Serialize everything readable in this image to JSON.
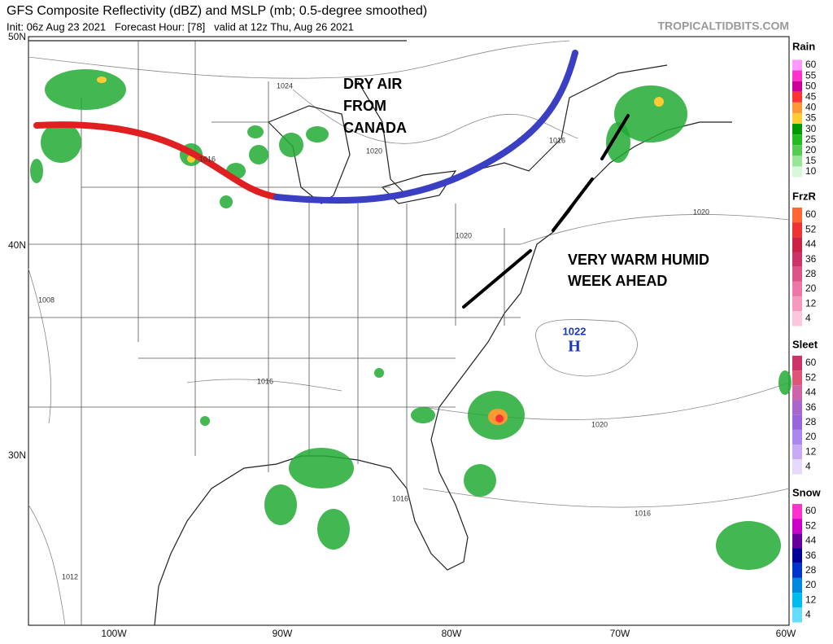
{
  "header": {
    "title": "GFS Composite Reflectivity (dBZ) and MSLP (mb; 0.5-degree smoothed)",
    "subtitle": "Init: 06z Aug 23 2021   Forecast Hour: [78]   valid at 12z Thu, Aug 26 2021",
    "credit": "TROPICALTIDBITS.COM"
  },
  "axes": {
    "lat_labels": [
      "50N",
      "40N",
      "30N"
    ],
    "lon_labels": [
      "100W",
      "90W",
      "80W",
      "70W",
      "60W"
    ]
  },
  "isobars": [
    "1024",
    "1020",
    "1016",
    "1020",
    "1016",
    "1020",
    "1008",
    "1016",
    "1016",
    "1020",
    "1016",
    "1012"
  ],
  "high": {
    "pressure": "1022",
    "letter": "H"
  },
  "annotations": [
    {
      "lines": [
        "DRY AIR",
        "FROM",
        "CANADA"
      ]
    },
    {
      "lines": [
        "VERY WARM HUMID",
        "WEEK AHEAD"
      ]
    }
  ],
  "legends": [
    {
      "name": "Rain",
      "labels": [
        "60",
        "55",
        "50",
        "45",
        "40",
        "35",
        "30",
        "25",
        "20",
        "15",
        "10"
      ],
      "colors": [
        "#ff99ff",
        "#ff33cc",
        "#cc0099",
        "#ff3333",
        "#ff9933",
        "#ffcc33",
        "#009900",
        "#22bb22",
        "#55cc55",
        "#99e699",
        "#d9f7d9"
      ]
    },
    {
      "name": "FrzR",
      "labels": [
        "60",
        "52",
        "44",
        "36",
        "28",
        "20",
        "12",
        "4"
      ],
      "colors": [
        "#ff6633",
        "#ee3333",
        "#cc2244",
        "#cc3366",
        "#dd5588",
        "#ee77aa",
        "#f599c0",
        "#fcc6dd"
      ]
    },
    {
      "name": "Sleet",
      "labels": [
        "60",
        "52",
        "44",
        "36",
        "28",
        "20",
        "12",
        "4"
      ],
      "colors": [
        "#cc3366",
        "#dd5577",
        "#cc66aa",
        "#aa66cc",
        "#9966dd",
        "#aa88ee",
        "#c8aaf5",
        "#e6d9fc"
      ]
    },
    {
      "name": "Snow",
      "labels": [
        "60",
        "52",
        "44",
        "36",
        "28",
        "20",
        "12",
        "4"
      ],
      "colors": [
        "#ff33cc",
        "#cc00cc",
        "#660099",
        "#000099",
        "#0033cc",
        "#0088dd",
        "#00bbee",
        "#66ddff"
      ]
    }
  ]
}
